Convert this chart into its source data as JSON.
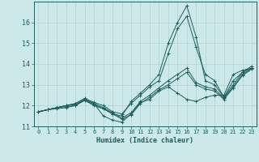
{
  "xlabel": "Humidex (Indice chaleur)",
  "ylabel": "",
  "bg_color": "#cce8e8",
  "line_color": "#1a6060",
  "grid_color": "#aacccc",
  "xlim": [
    -0.5,
    23.5
  ],
  "ylim": [
    11,
    17
  ],
  "yticks": [
    11,
    12,
    13,
    14,
    15,
    16
  ],
  "xticks": [
    0,
    1,
    2,
    3,
    4,
    5,
    6,
    7,
    8,
    9,
    10,
    11,
    12,
    13,
    14,
    15,
    16,
    17,
    18,
    19,
    20,
    21,
    22,
    23
  ],
  "series": [
    [
      11.7,
      11.8,
      11.9,
      11.95,
      12.0,
      12.3,
      12.1,
      11.5,
      11.3,
      11.2,
      11.6,
      12.15,
      12.3,
      12.7,
      12.9,
      12.6,
      12.3,
      12.2,
      12.4,
      12.5,
      12.5,
      13.5,
      13.7,
      13.8
    ],
    [
      11.7,
      11.8,
      11.85,
      11.9,
      12.0,
      12.25,
      12.0,
      11.85,
      11.6,
      11.5,
      12.2,
      12.6,
      13.0,
      13.5,
      15.0,
      16.0,
      16.8,
      15.3,
      13.2,
      13.0,
      12.4,
      13.0,
      13.6,
      13.8
    ],
    [
      11.7,
      11.8,
      11.9,
      12.0,
      12.1,
      12.35,
      12.15,
      12.0,
      11.7,
      11.6,
      12.1,
      12.5,
      12.9,
      13.2,
      14.5,
      15.7,
      16.3,
      14.8,
      13.5,
      13.2,
      12.4,
      13.2,
      13.6,
      13.9
    ],
    [
      11.7,
      11.8,
      11.9,
      12.0,
      12.1,
      12.3,
      12.1,
      11.9,
      11.65,
      11.4,
      11.65,
      12.2,
      12.5,
      12.85,
      13.2,
      13.5,
      13.8,
      13.1,
      12.9,
      12.8,
      12.35,
      12.9,
      13.5,
      13.8
    ],
    [
      11.7,
      11.8,
      11.9,
      12.0,
      12.05,
      12.25,
      12.05,
      11.85,
      11.6,
      11.35,
      11.55,
      12.1,
      12.4,
      12.75,
      13.0,
      13.3,
      13.6,
      13.0,
      12.8,
      12.7,
      12.3,
      12.85,
      13.45,
      13.75
    ]
  ],
  "tick_fontsize": 5,
  "xlabel_fontsize": 6,
  "marker_size": 2.5,
  "linewidth": 0.7
}
